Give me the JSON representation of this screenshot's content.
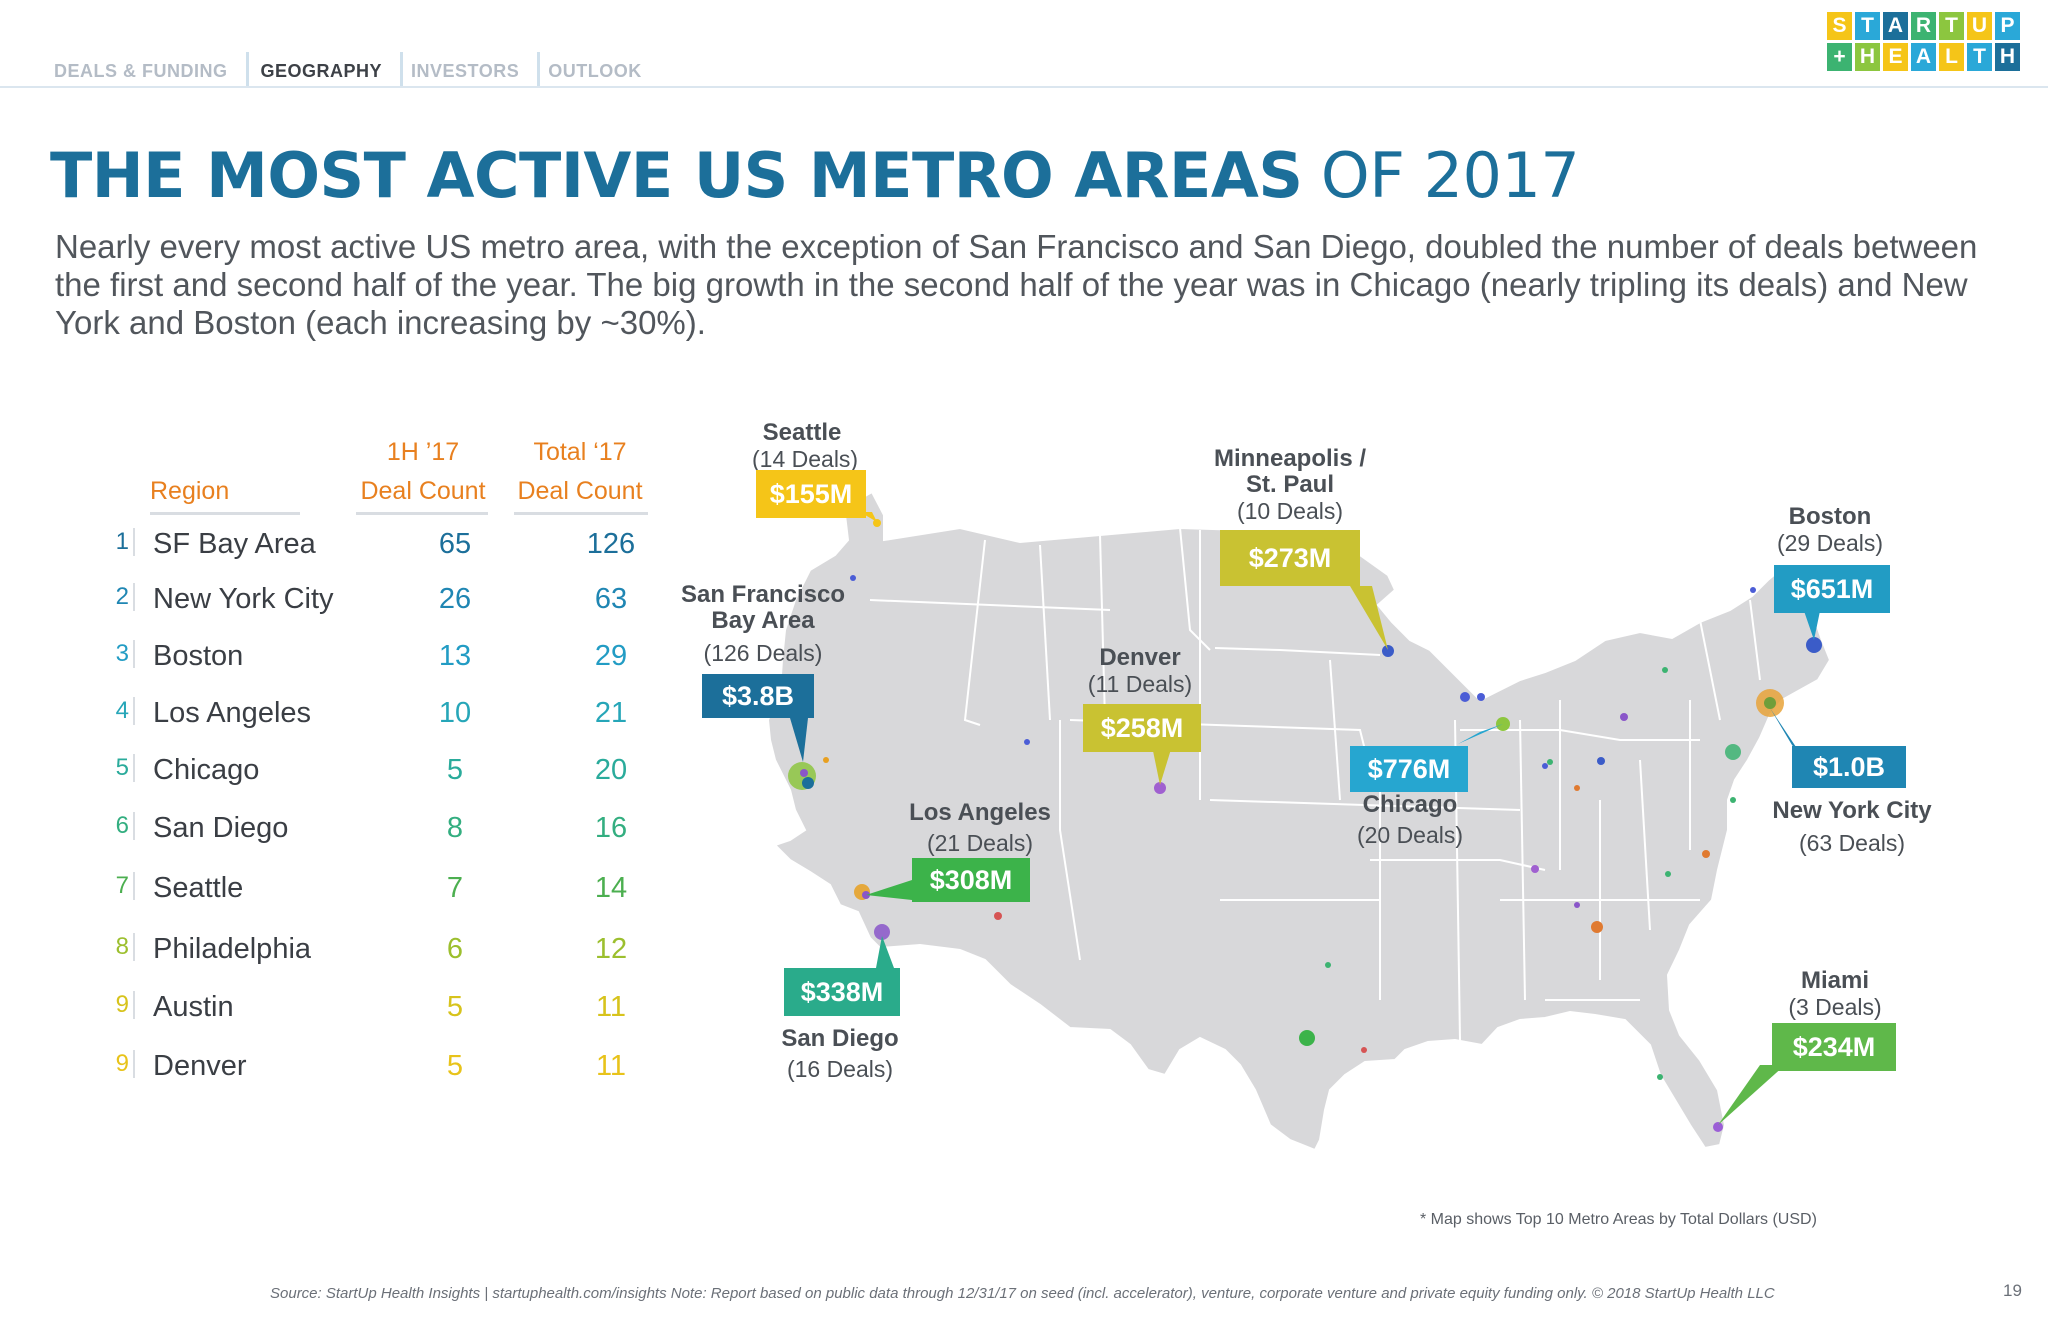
{
  "nav": {
    "items": [
      "DEALS & FUNDING",
      "GEOGRAPHY",
      "INVESTORS",
      "OUTLOOK"
    ],
    "active": "GEOGRAPHY"
  },
  "logo": {
    "row1": [
      "S",
      "T",
      "A",
      "R",
      "T",
      "U",
      "P"
    ],
    "row2": [
      "+",
      "H",
      "E",
      "A",
      "L",
      "T",
      "H"
    ],
    "colors": [
      "#f5c518",
      "#2aa8d8",
      "#1c6f9a",
      "#3cb371",
      "#8cc63f",
      "#f5c518",
      "#2aa8d8"
    ]
  },
  "title": {
    "bold": "THE MOST ACTIVE US METRO AREAS",
    "thin": "OF 2017"
  },
  "subtitle": "Nearly every most active US metro area, with the exception of San Francisco and San Diego, doubled the number of deals between the first and second half of the year. The big growth in the second half of the year was in Chicago (nearly tripling its deals) and New York and Boston (each increasing by ~30%).",
  "table": {
    "headers": {
      "region": "Region",
      "h1_top": "1H ’17",
      "h1_bottom": "Deal Count",
      "total_top": "Total ‘17",
      "total_bottom": "Deal Count"
    },
    "rows": [
      {
        "rank": "1",
        "region": "SF Bay Area",
        "h1": "65",
        "total": "126",
        "color": "#1c6f9a"
      },
      {
        "rank": "2",
        "region": "New York City",
        "h1": "26",
        "total": "63",
        "color": "#1f86b3"
      },
      {
        "rank": "3",
        "region": "Boston",
        "h1": "13",
        "total": "29",
        "color": "#229cc4"
      },
      {
        "rank": "4",
        "region": "Los Angeles",
        "h1": "10",
        "total": "21",
        "color": "#26a6b8"
      },
      {
        "rank": "5",
        "region": "Chicago",
        "h1": "5",
        "total": "20",
        "color": "#2aab9b"
      },
      {
        "rank": "6",
        "region": "San Diego",
        "h1": "8",
        "total": "16",
        "color": "#33ae80"
      },
      {
        "rank": "7",
        "region": "Seattle",
        "h1": "7",
        "total": "14",
        "color": "#4caf50"
      },
      {
        "rank": "8",
        "region": "Philadelphia",
        "h1": "6",
        "total": "12",
        "color": "#9cbf2e"
      },
      {
        "rank": "9",
        "region": "Austin",
        "h1": "5",
        "total": "11",
        "color": "#d7c31c"
      },
      {
        "rank": "9",
        "region": "Denver",
        "h1": "5",
        "total": "11",
        "color": "#e8c31a"
      }
    ]
  },
  "map_labels": {
    "seattle": {
      "name": "Seattle",
      "deals": "(14 Deals)",
      "amount": "$155M",
      "color": "#f5c518"
    },
    "minneapolis": {
      "name1": "Minneapolis /",
      "name2": "St. Paul",
      "deals": "(10 Deals)",
      "amount": "$273M",
      "color": "#c9c232"
    },
    "boston": {
      "name": "Boston",
      "deals": "(29 Deals)",
      "amount": "$651M",
      "color": "#229cc4"
    },
    "sf": {
      "name1": "San Francisco",
      "name2": "Bay Area",
      "deals": "(126 Deals)",
      "amount": "$3.8B",
      "color": "#1c6f9a"
    },
    "denver": {
      "name": "Denver",
      "deals": "(11 Deals)",
      "amount": "$258M",
      "color": "#c9c232"
    },
    "chicago": {
      "name": "Chicago",
      "deals": "(20 Deals)",
      "amount": "$776M",
      "color": "#26a6d0"
    },
    "nyc": {
      "name": "New York City",
      "deals": "(63 Deals)",
      "amount": "$1.0B",
      "color": "#1f86b3"
    },
    "la": {
      "name": "Los Angeles",
      "deals": "(21 Deals)",
      "amount": "$308M",
      "color": "#3cb34a"
    },
    "sandiego": {
      "name": "San Diego",
      "deals": "(16 Deals)",
      "amount": "$338M",
      "color": "#2aab8b"
    },
    "miami": {
      "name": "Miami",
      "deals": "(3 Deals)",
      "amount": "$234M",
      "color": "#5fb84a"
    }
  },
  "footnote": "* Map shows Top 10 Metro Areas by Total Dollars (USD)",
  "source": "Source: StartUp Health Insights | startuphealth.com/insights Note: Report based on public data through 12/31/17 on seed (incl. accelerator), venture, corporate venture and private equity funding only. © 2018 StartUp Health LLC",
  "page_number": "19"
}
